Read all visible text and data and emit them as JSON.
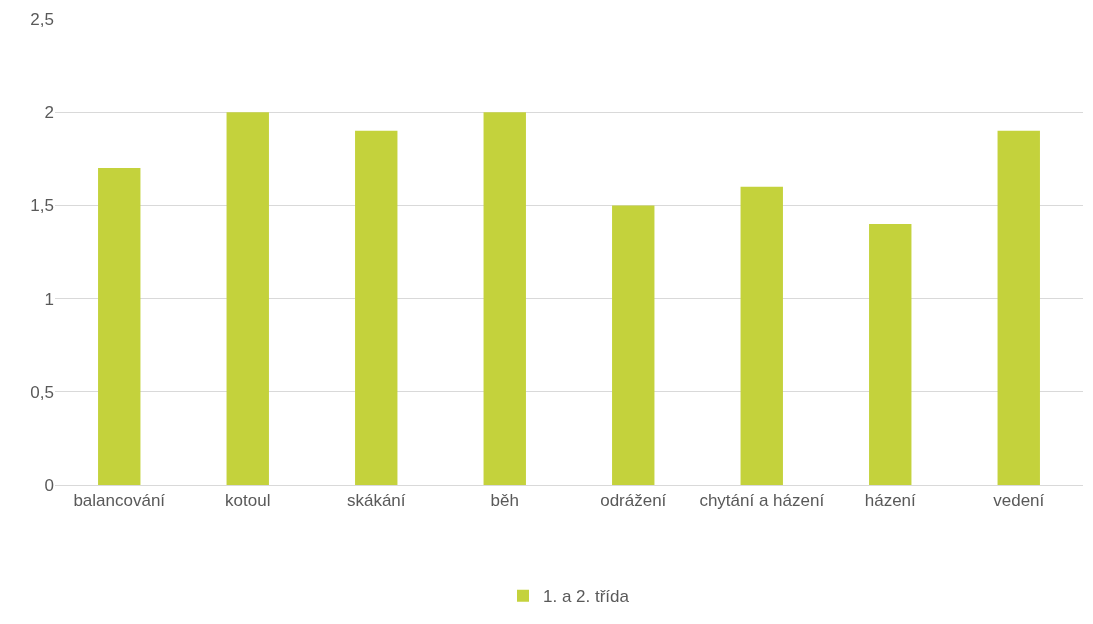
{
  "chart_data": {
    "type": "bar",
    "categories": [
      "balancování",
      "kotoul",
      "skákání",
      "běh",
      "odrážení",
      "chytání a házení",
      "házení",
      "vedení"
    ],
    "series": [
      {
        "name": "1. a 2. třída",
        "color": "#c4d23c",
        "values": [
          1.7,
          2,
          1.9,
          2,
          1.5,
          1.6,
          1.4,
          1.9
        ]
      }
    ],
    "ylim": [
      0,
      2.5
    ],
    "yticks": [
      0,
      {
        "value": 0.5,
        "label": "0,5"
      },
      1,
      {
        "value": 1.5,
        "label": "1,5"
      },
      2,
      {
        "value": 2.5,
        "label": "2,5"
      }
    ],
    "grid": "y",
    "legend": "bottom"
  }
}
